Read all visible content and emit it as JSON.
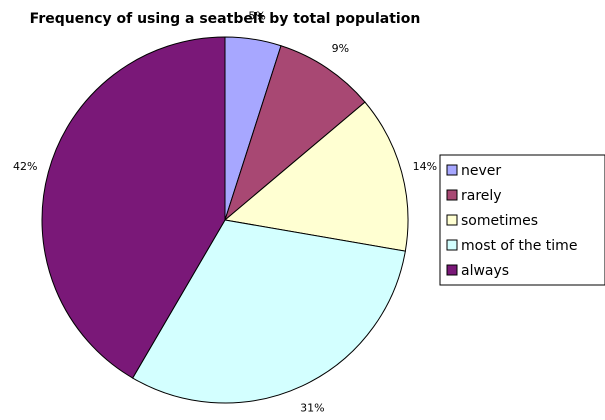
{
  "chart_data": {
    "type": "pie",
    "title": "Frequency of using a seatbelt by total population",
    "categories": [
      "never",
      "rarely",
      "sometimes",
      "most of the time",
      "always"
    ],
    "values": [
      5,
      9,
      14,
      31,
      42
    ],
    "data_labels": [
      "5%",
      "9%",
      "14%",
      "31%",
      "42%"
    ],
    "colors": [
      "#a7a7ff",
      "#a84873",
      "#ffffd2",
      "#d3ffff",
      "#7a1878"
    ],
    "start_angle": "12 o'clock",
    "direction": "clockwise",
    "legend": {
      "position": "right",
      "entries": [
        "never",
        "rarely",
        "sometimes",
        "most of the time",
        "always"
      ]
    }
  }
}
